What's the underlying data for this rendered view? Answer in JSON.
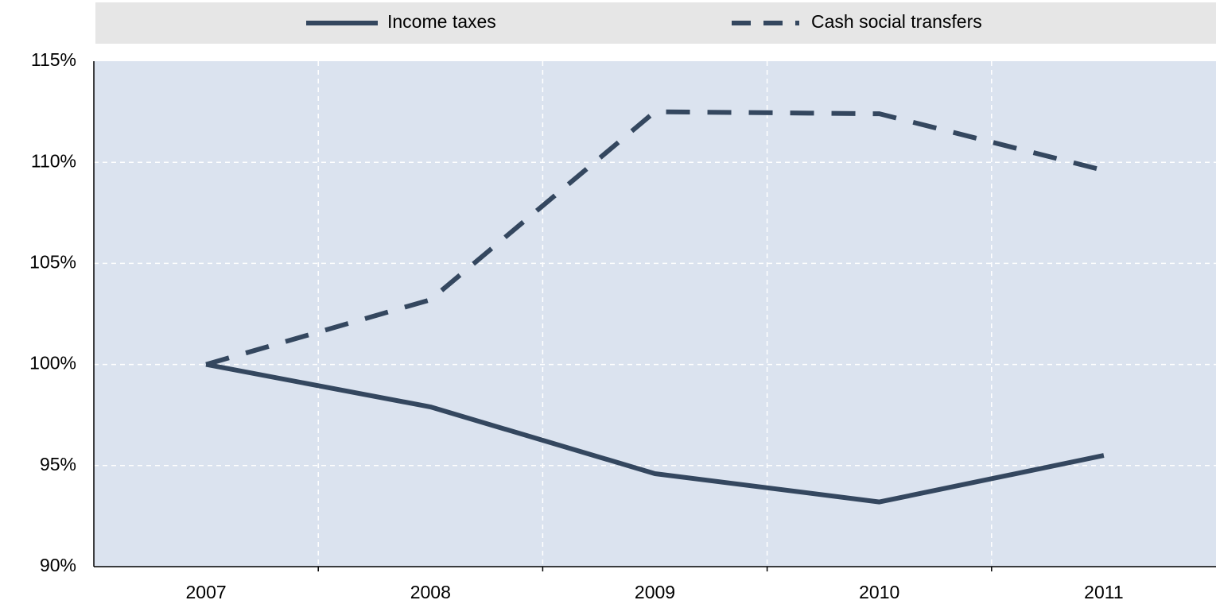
{
  "chart_data": {
    "type": "line",
    "categories": [
      "2007",
      "2008",
      "2009",
      "2010",
      "2011"
    ],
    "series": [
      {
        "name": "Income taxes",
        "color": "#34475f",
        "dash": false,
        "values": [
          100,
          97.9,
          94.6,
          93.2,
          95.5
        ]
      },
      {
        "name": "Cash social transfers",
        "color": "#34475f",
        "dash": true,
        "values": [
          100,
          103.2,
          112.5,
          112.4,
          109.6
        ]
      }
    ],
    "ylim": [
      90,
      115
    ],
    "yticks": [
      {
        "value": 90,
        "label": "90%"
      },
      {
        "value": 95,
        "label": "95%"
      },
      {
        "value": 100,
        "label": "100%"
      },
      {
        "value": 105,
        "label": "105%"
      },
      {
        "value": 110,
        "label": "110%"
      },
      {
        "value": 115,
        "label": "115%"
      }
    ],
    "grid": true,
    "legend": "top"
  }
}
